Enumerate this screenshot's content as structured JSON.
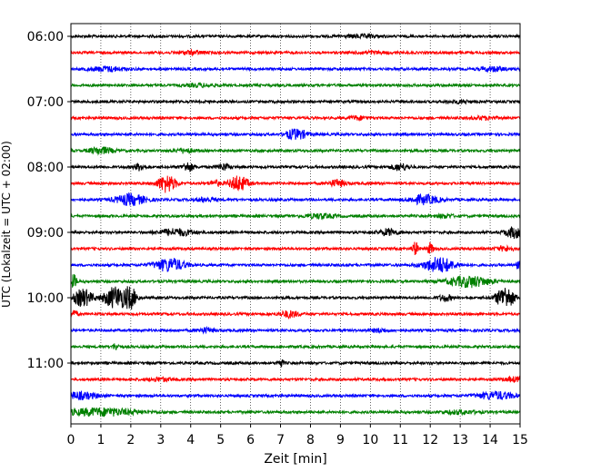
{
  "chart_data": {
    "type": "line",
    "title": "",
    "xlabel": "Zeit  [min]",
    "ylabel": "UTC (Lokalzeit = UTC + 02:00)",
    "xlim": [
      0,
      15
    ],
    "x_ticks": [
      0,
      1,
      2,
      3,
      4,
      5,
      6,
      7,
      8,
      9,
      10,
      11,
      12,
      13,
      14,
      15
    ],
    "x_tick_labels": [
      "0",
      "1",
      "2",
      "3",
      "4",
      "5",
      "6",
      "7",
      "8",
      "9",
      "10",
      "11",
      "12",
      "13",
      "14",
      "15"
    ],
    "y_tick_labels": [
      "06:00",
      "07:00",
      "08:00",
      "09:00",
      "10:00",
      "11:00"
    ],
    "y_tick_trace_index": [
      0,
      4,
      8,
      12,
      16,
      20
    ],
    "trace_minutes": 15,
    "vertical_grid": "dotted",
    "legend": "none",
    "trace_colors": [
      "#000000",
      "#ff0000",
      "#0000ff",
      "#008000"
    ],
    "traces": [
      {
        "start": "06:00",
        "color": "#000000",
        "events": [
          [
            9.7,
            0.6,
            0.12
          ]
        ]
      },
      {
        "start": "06:15",
        "color": "#ff0000",
        "events": [
          [
            4.0,
            0.5,
            0.15
          ],
          [
            10.0,
            0.5,
            0.1
          ]
        ]
      },
      {
        "start": "06:30",
        "color": "#0000ff",
        "events": [
          [
            1.2,
            0.6,
            0.2
          ],
          [
            14.1,
            0.4,
            0.2
          ]
        ]
      },
      {
        "start": "06:45",
        "color": "#008000",
        "events": [
          [
            4.3,
            0.5,
            0.12
          ]
        ]
      },
      {
        "start": "07:00",
        "color": "#000000",
        "events": [
          [
            13.0,
            0.4,
            0.1
          ]
        ]
      },
      {
        "start": "07:15",
        "color": "#ff0000",
        "events": [
          [
            9.6,
            0.3,
            0.15
          ],
          [
            13.8,
            0.4,
            0.12
          ]
        ]
      },
      {
        "start": "07:30",
        "color": "#0000ff",
        "events": [
          [
            7.6,
            0.3,
            0.4
          ],
          [
            7.3,
            0.2,
            0.2
          ]
        ]
      },
      {
        "start": "07:45",
        "color": "#008000",
        "events": [
          [
            1.0,
            0.4,
            0.3
          ],
          [
            3.8,
            0.3,
            0.2
          ]
        ]
      },
      {
        "start": "08:00",
        "color": "#000000",
        "events": [
          [
            2.3,
            0.2,
            0.3
          ],
          [
            3.9,
            0.2,
            0.4
          ],
          [
            5.1,
            0.2,
            0.3
          ],
          [
            11.0,
            0.3,
            0.3
          ]
        ]
      },
      {
        "start": "08:15",
        "color": "#ff0000",
        "events": [
          [
            3.2,
            0.3,
            0.8
          ],
          [
            5.6,
            0.3,
            0.7
          ],
          [
            8.9,
            0.3,
            0.3
          ],
          [
            4.8,
            0.2,
            0.25
          ]
        ]
      },
      {
        "start": "08:30",
        "color": "#0000ff",
        "events": [
          [
            2.0,
            0.5,
            0.5
          ],
          [
            11.8,
            0.5,
            0.4
          ],
          [
            4.5,
            0.3,
            0.2
          ]
        ]
      },
      {
        "start": "08:45",
        "color": "#008000",
        "events": [
          [
            8.3,
            0.5,
            0.2
          ],
          [
            12.5,
            0.3,
            0.15
          ]
        ]
      },
      {
        "start": "09:00",
        "color": "#000000",
        "events": [
          [
            3.5,
            0.6,
            0.3
          ],
          [
            10.6,
            0.3,
            0.3
          ],
          [
            14.8,
            0.3,
            0.5
          ]
        ]
      },
      {
        "start": "09:15",
        "color": "#ff0000",
        "events": [
          [
            11.5,
            0.1,
            0.6
          ],
          [
            12.0,
            0.1,
            0.5
          ],
          [
            14.5,
            0.3,
            0.2
          ]
        ]
      },
      {
        "start": "09:30",
        "color": "#0000ff",
        "events": [
          [
            3.3,
            0.5,
            0.6
          ],
          [
            12.3,
            0.5,
            0.7
          ],
          [
            15.0,
            0.1,
            0.8
          ]
        ]
      },
      {
        "start": "09:45",
        "color": "#008000",
        "events": [
          [
            13.3,
            0.7,
            0.5
          ],
          [
            0.1,
            0.1,
            0.6
          ]
        ]
      },
      {
        "start": "10:00",
        "color": "#000000",
        "events": [
          [
            0.4,
            0.3,
            0.8
          ],
          [
            1.5,
            0.4,
            1.0
          ],
          [
            2.0,
            0.2,
            0.8
          ],
          [
            14.5,
            0.3,
            1.0
          ],
          [
            12.5,
            0.2,
            0.3
          ]
        ]
      },
      {
        "start": "10:15",
        "color": "#ff0000",
        "events": [
          [
            0.1,
            0.1,
            0.4
          ],
          [
            7.3,
            0.3,
            0.3
          ]
        ]
      },
      {
        "start": "10:30",
        "color": "#0000ff",
        "events": [
          [
            4.5,
            0.3,
            0.2
          ],
          [
            10.3,
            0.3,
            0.15
          ]
        ]
      },
      {
        "start": "10:45",
        "color": "#008000",
        "events": [
          [
            1.5,
            0.1,
            0.3
          ]
        ]
      },
      {
        "start": "11:00",
        "color": "#000000",
        "events": [
          [
            7.0,
            0.1,
            0.35
          ]
        ]
      },
      {
        "start": "11:15",
        "color": "#ff0000",
        "events": [
          [
            3.0,
            0.4,
            0.15
          ],
          [
            14.8,
            0.3,
            0.2
          ]
        ]
      },
      {
        "start": "11:30",
        "color": "#0000ff",
        "events": [
          [
            0.3,
            0.6,
            0.3
          ],
          [
            14.2,
            0.6,
            0.35
          ]
        ]
      },
      {
        "start": "11:45",
        "color": "#008000",
        "events": [
          [
            1.0,
            1.2,
            0.35
          ],
          [
            13.0,
            0.6,
            0.15
          ]
        ]
      }
    ]
  }
}
